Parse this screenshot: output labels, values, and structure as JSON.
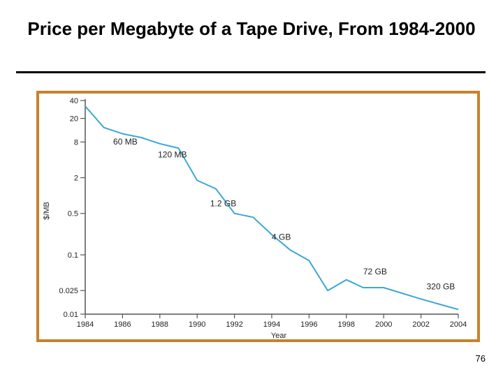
{
  "slide": {
    "title": "Price per Megabyte of a Tape Drive, From 1984-2000",
    "page_number": "76"
  },
  "colors": {
    "frame": "#c8822c",
    "line": "#3aa8d4",
    "axis": "#555555"
  },
  "chart_data": {
    "type": "line",
    "title": "",
    "xlabel": "Year",
    "ylabel": "$/MB",
    "y_scale": "log",
    "xlim": [
      1984,
      2004
    ],
    "ylim": [
      0.01,
      40
    ],
    "x_ticks": [
      "1984",
      "1986",
      "1988",
      "1990",
      "1992",
      "1994",
      "1996",
      "1998",
      "2000",
      "2002",
      "2004"
    ],
    "y_ticks": [
      "40",
      "20",
      "8",
      "2",
      "0.5",
      "0.1",
      "0.025",
      "0.01"
    ],
    "grid": false,
    "series": [
      {
        "x": [
          1984.0,
          1985.0,
          1986.0,
          1987.0,
          1988.0,
          1989.0,
          1990.0,
          1991.0,
          1992.0,
          1993.0,
          1994.0,
          1995.0,
          1996.0,
          1997.0,
          1998.0,
          1998.9,
          2000.0,
          2002.0,
          2004.0
        ],
        "y": [
          32,
          14,
          11,
          9.5,
          7.5,
          6.3,
          1.8,
          1.3,
          0.5,
          0.43,
          0.22,
          0.12,
          0.08,
          0.025,
          0.038,
          0.028,
          0.028,
          0.018,
          0.012
        ]
      }
    ],
    "annotations": [
      {
        "text": "60 MB",
        "x": 1985.5,
        "y": 7.3
      },
      {
        "text": "120 MB",
        "x": 1987.9,
        "y": 4.4
      },
      {
        "text": "1.2 GB",
        "x": 1990.7,
        "y": 0.66
      },
      {
        "text": "4 GB",
        "x": 1994.0,
        "y": 0.18
      },
      {
        "text": "72 GB",
        "x": 1998.9,
        "y": 0.047
      },
      {
        "text": "320 GB",
        "x": 2002.3,
        "y": 0.026
      }
    ]
  }
}
